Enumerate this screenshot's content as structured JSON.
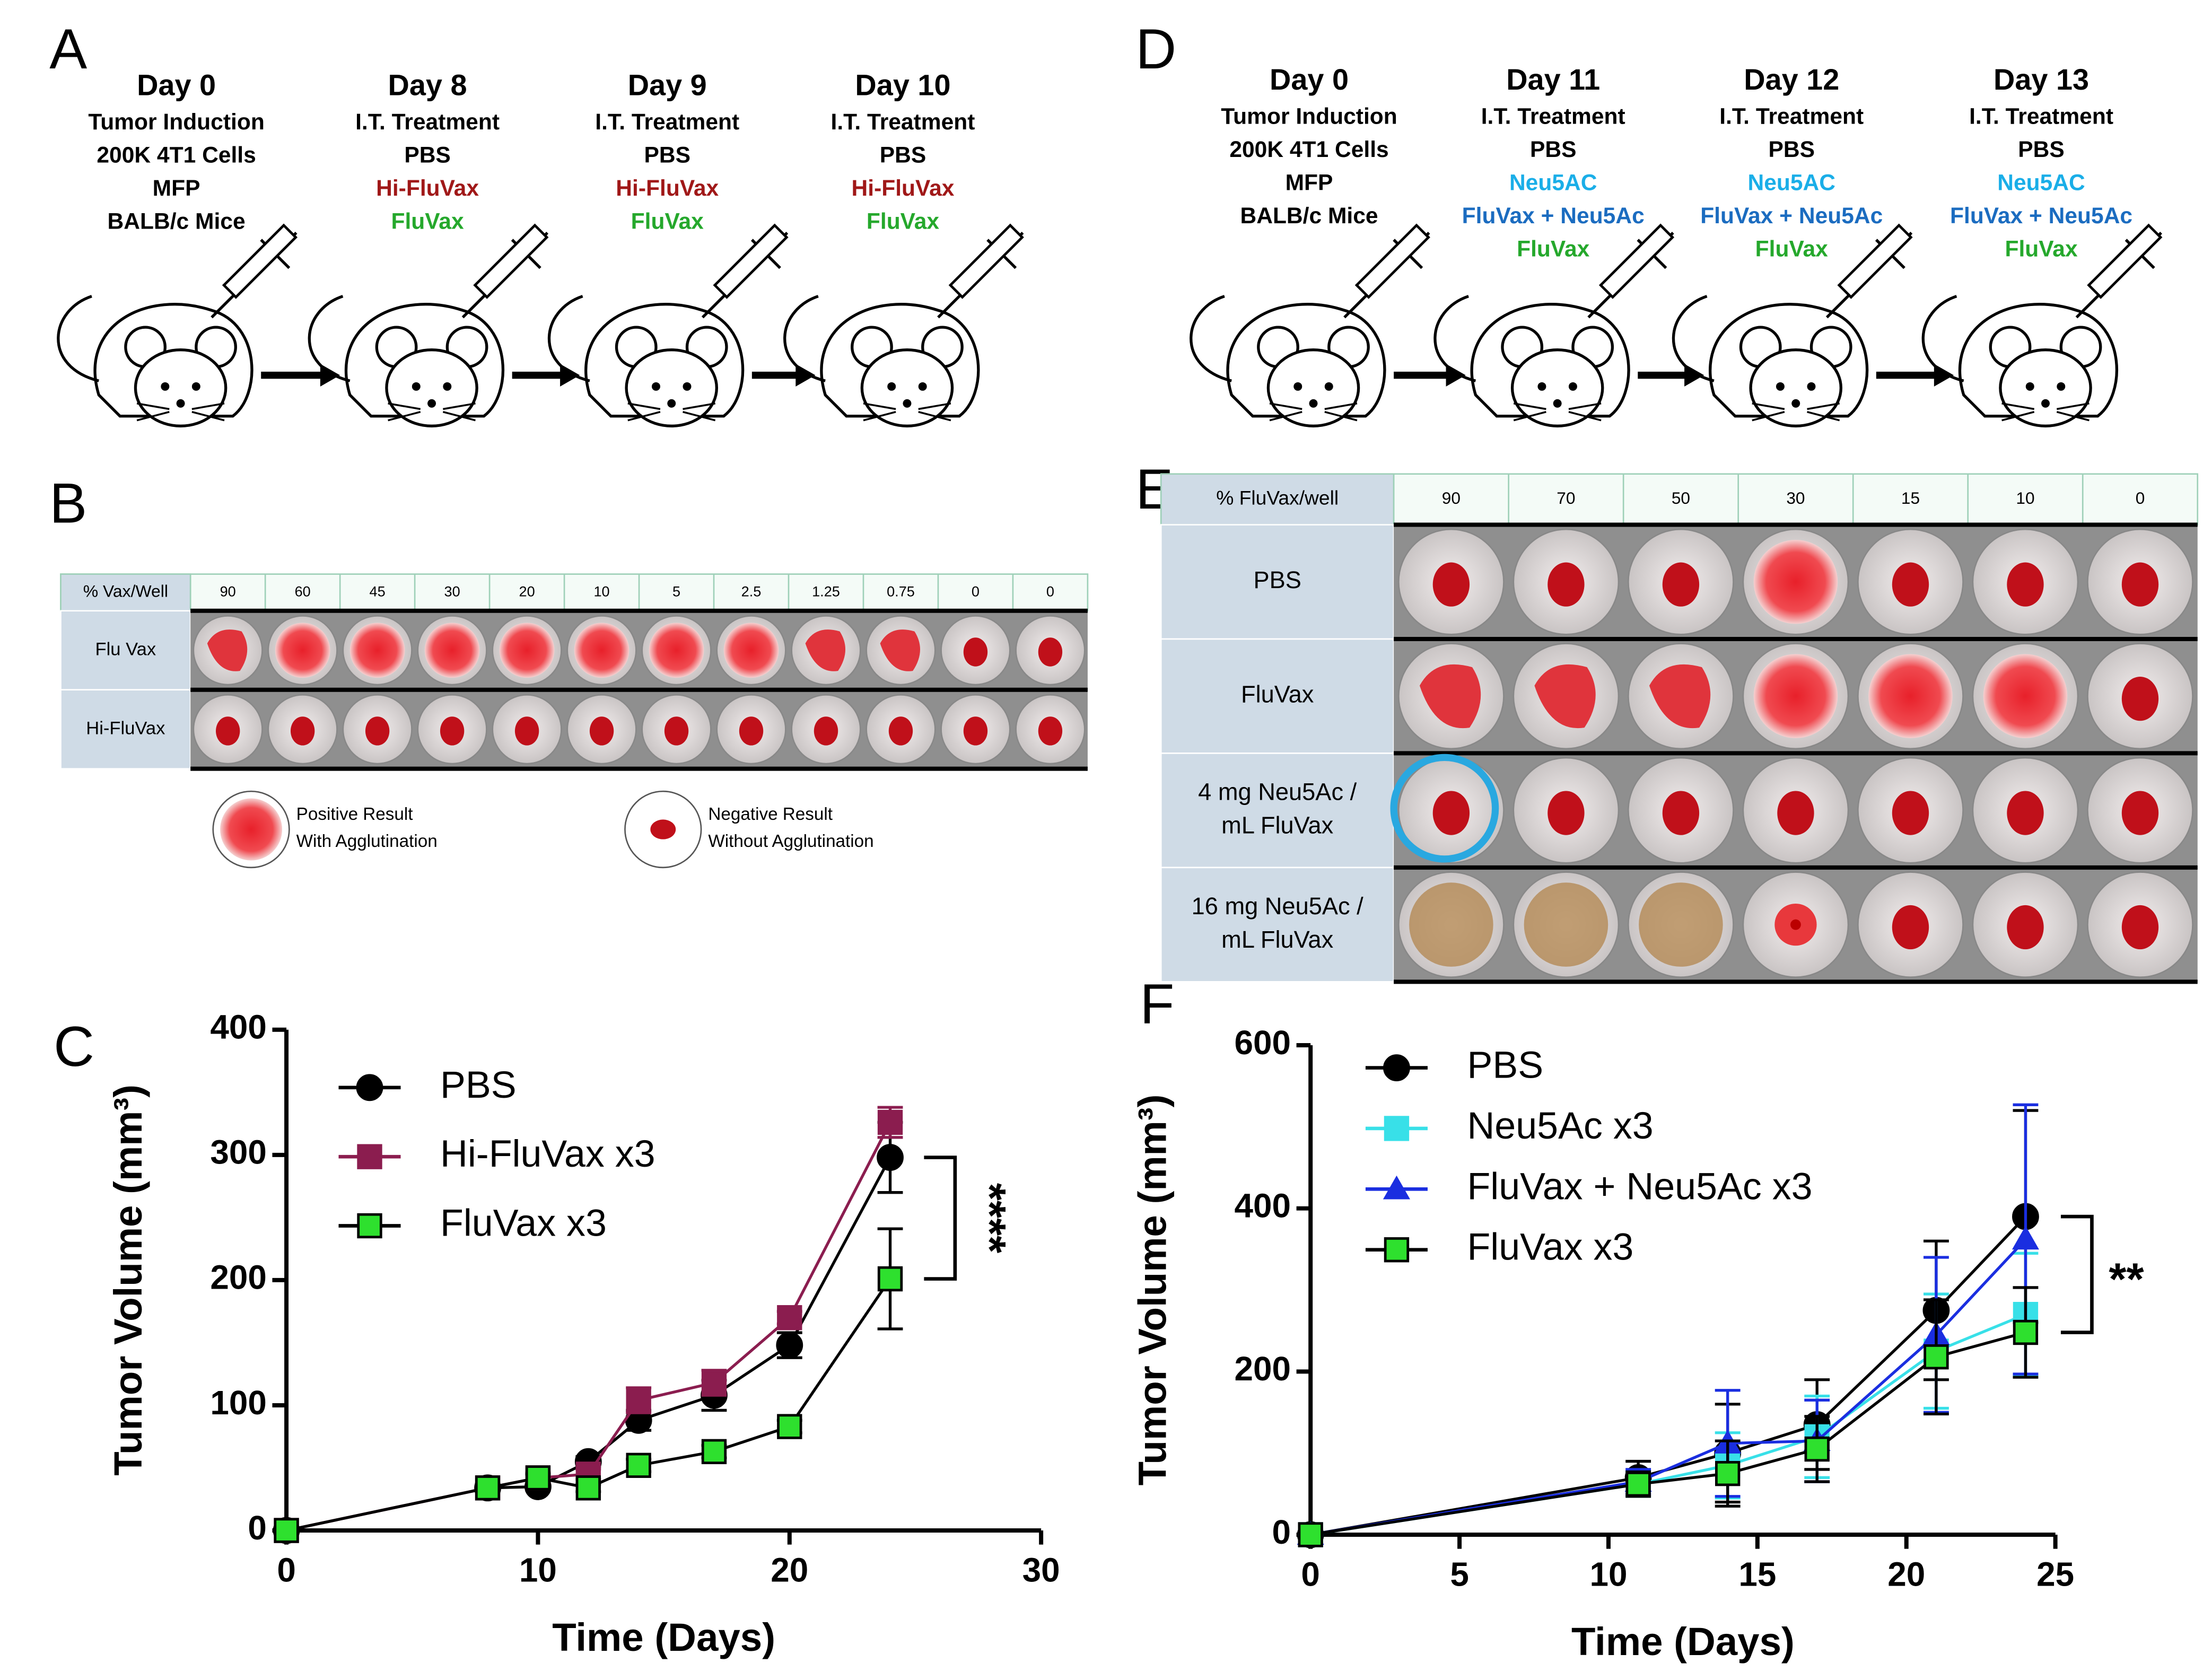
{
  "panel_labels": {
    "a": "A",
    "b": "B",
    "c": "C",
    "d": "D",
    "e": "E",
    "f": "F"
  },
  "timeline_a": {
    "steps": [
      {
        "lines": [
          {
            "text": "Day 0"
          },
          {
            "text": "Tumor Induction"
          },
          {
            "text": "200K 4T1 Cells"
          },
          {
            "text": "MFP"
          },
          {
            "text": "BALB/c Mice"
          }
        ]
      },
      {
        "lines": [
          {
            "text": "Day 8"
          },
          {
            "text": "I.T. Treatment"
          },
          {
            "text": "PBS"
          },
          {
            "text": "Hi-FluVax",
            "color": "#a01818"
          },
          {
            "text": "FluVax",
            "color": "#25a82c"
          }
        ]
      },
      {
        "lines": [
          {
            "text": "Day 9"
          },
          {
            "text": "I.T. Treatment"
          },
          {
            "text": "PBS"
          },
          {
            "text": "Hi-FluVax",
            "color": "#a01818"
          },
          {
            "text": "FluVax",
            "color": "#25a82c"
          }
        ]
      },
      {
        "lines": [
          {
            "text": "Day 10"
          },
          {
            "text": "I.T. Treatment"
          },
          {
            "text": "PBS"
          },
          {
            "text": "Hi-FluVax",
            "color": "#a01818"
          },
          {
            "text": "FluVax",
            "color": "#25a82c"
          }
        ]
      }
    ]
  },
  "timeline_d": {
    "steps": [
      {
        "lines": [
          {
            "text": "Day 0"
          },
          {
            "text": "Tumor Induction"
          },
          {
            "text": "200K 4T1 Cells"
          },
          {
            "text": "MFP"
          },
          {
            "text": "BALB/c Mice"
          }
        ]
      },
      {
        "lines": [
          {
            "text": "Day 11"
          },
          {
            "text": "I.T. Treatment"
          },
          {
            "text": "PBS"
          },
          {
            "text": "Neu5AC",
            "color": "#1aaee8"
          },
          {
            "text": "FluVax + Neu5Ac",
            "color": "#1b6cc0"
          },
          {
            "text": "FluVax",
            "color": "#25a82c"
          }
        ]
      },
      {
        "lines": [
          {
            "text": "Day 12"
          },
          {
            "text": "I.T. Treatment"
          },
          {
            "text": "PBS"
          },
          {
            "text": "Neu5AC",
            "color": "#1aaee8"
          },
          {
            "text": "FluVax + Neu5Ac",
            "color": "#1b6cc0"
          },
          {
            "text": "FluVax",
            "color": "#25a82c"
          }
        ]
      },
      {
        "lines": [
          {
            "text": "Day 13"
          },
          {
            "text": "I.T. Treatment"
          },
          {
            "text": "PBS"
          },
          {
            "text": "Neu5AC",
            "color": "#1aaee8"
          },
          {
            "text": "FluVax + Neu5Ac",
            "color": "#1b6cc0"
          },
          {
            "text": "FluVax",
            "color": "#25a82c"
          }
        ]
      }
    ]
  },
  "plate_b": {
    "header": "% Vax/Well",
    "columns": [
      90,
      60,
      45,
      30,
      20,
      10,
      5,
      2.5,
      1.25,
      0.75,
      0,
      0
    ],
    "rows": [
      "Flu Vax",
      "Hi-FluVax"
    ],
    "legend": [
      {
        "lines": [
          "Positive Result",
          "With Agglutination"
        ]
      },
      {
        "lines": [
          "Negative Result",
          "Without Agglutination"
        ]
      }
    ]
  },
  "plate_e": {
    "header": "% FluVax/well",
    "columns": [
      90,
      70,
      50,
      30,
      15,
      10,
      0
    ],
    "rows": [
      [
        "PBS"
      ],
      [
        "FluVax"
      ],
      [
        "4 mg Neu5Ac /",
        "mL FluVax"
      ],
      [
        "16 mg Neu5Ac /",
        "mL FluVax"
      ]
    ]
  },
  "chart_data": [
    {
      "type": "line",
      "xlabel": "Time (Days)",
      "ylabel": "Tumor Volume (mm³)",
      "annotation": "****",
      "xlim": [
        0,
        30
      ],
      "xticks": [
        0,
        10,
        20,
        30
      ],
      "ylim": [
        0,
        400
      ],
      "yticks": [
        0,
        100,
        200,
        300,
        400
      ],
      "x": [
        0,
        8,
        10,
        12,
        14,
        17,
        20,
        24
      ],
      "series": [
        {
          "name": "PBS",
          "color": "#000000",
          "marker": "circle",
          "values": [
            0,
            34,
            35,
            55,
            88,
            108,
            148,
            298
          ],
          "errors": [
            0,
            3,
            3,
            4,
            8,
            12,
            10,
            28
          ]
        },
        {
          "name": "Hi-FluVax x3",
          "color": "#8b1d4f",
          "marker": "square",
          "values": [
            0,
            34,
            42,
            45,
            104,
            118,
            170,
            326
          ],
          "errors": [
            0,
            3,
            4,
            4,
            10,
            10,
            5,
            12
          ]
        },
        {
          "name": "FluVax x3",
          "color": "#000000",
          "fill": "#2ee02e",
          "marker": "square",
          "values": [
            0,
            34,
            42,
            34,
            52,
            63,
            83,
            201
          ],
          "errors": [
            0,
            3,
            3,
            3,
            5,
            5,
            5,
            40
          ]
        }
      ]
    },
    {
      "type": "line",
      "xlabel": "Time (Days)",
      "ylabel": "Tumor Volume (mm³)",
      "annotation": "**",
      "xlim": [
        0,
        25
      ],
      "xticks": [
        0,
        5,
        10,
        15,
        20,
        25
      ],
      "ylim": [
        0,
        600
      ],
      "yticks": [
        0,
        200,
        400,
        600
      ],
      "x": [
        0,
        11,
        14,
        17,
        21,
        24
      ],
      "series": [
        {
          "name": "PBS",
          "color": "#000000",
          "marker": "circle",
          "values": [
            0,
            70,
            100,
            135,
            275,
            390
          ],
          "errors": [
            0,
            20,
            60,
            55,
            85,
            130
          ]
        },
        {
          "name": "Neu5Ac x3",
          "color": "#38e0e8",
          "marker": "square",
          "values": [
            0,
            62,
            85,
            120,
            225,
            270
          ],
          "errors": [
            0,
            15,
            40,
            50,
            70,
            75
          ]
        },
        {
          "name": "FluVax + Neu5Ac x3",
          "color": "#1a2ee0",
          "marker": "triangle",
          "values": [
            0,
            65,
            112,
            115,
            245,
            362
          ],
          "errors": [
            0,
            15,
            65,
            50,
            95,
            165
          ]
        },
        {
          "name": "FluVax x3",
          "color": "#000000",
          "fill": "#2ee02e",
          "marker": "square",
          "values": [
            0,
            62,
            75,
            105,
            218,
            248
          ],
          "errors": [
            0,
            15,
            40,
            40,
            70,
            55
          ]
        }
      ]
    }
  ]
}
